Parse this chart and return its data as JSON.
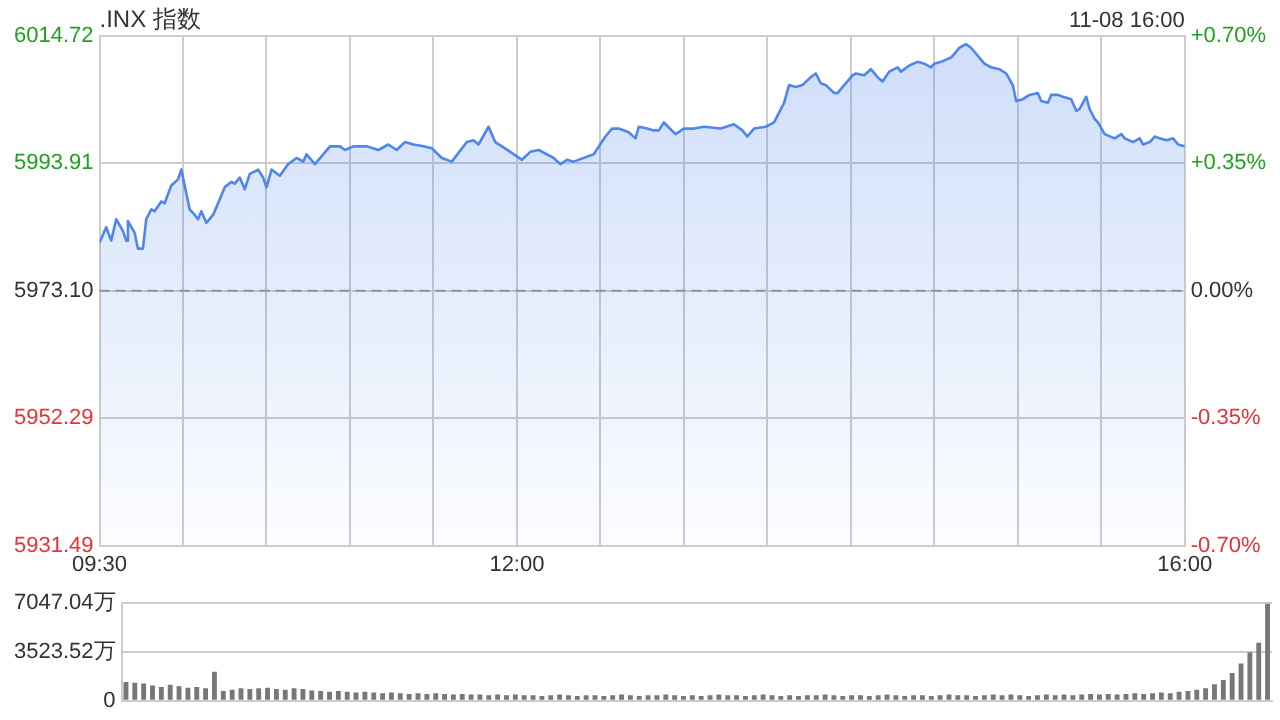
{
  "chart_data": [
    {
      "type": "area",
      "title": ".INX 指数",
      "annotations": [
        "11-08 16:00"
      ],
      "color": "#4f86ec",
      "marker": "none",
      "grid": true,
      "x": [
        9.5,
        9.54,
        9.57,
        9.6,
        9.64,
        9.66,
        9.67,
        9.71,
        9.73,
        9.76,
        9.78,
        9.81,
        9.83,
        9.87,
        9.89,
        9.93,
        9.97,
        9.99,
        10.02,
        10.04,
        10.07,
        10.09,
        10.11,
        10.14,
        10.18,
        10.21,
        10.25,
        10.29,
        10.31,
        10.34,
        10.37,
        10.4,
        10.45,
        10.48,
        10.5,
        10.53,
        10.58,
        10.63,
        10.68,
        10.72,
        10.74,
        10.79,
        10.84,
        10.88,
        10.94,
        10.97,
        11.02,
        11.1,
        11.17,
        11.23,
        11.28,
        11.33,
        11.38,
        11.44,
        11.49,
        11.55,
        11.61,
        11.7,
        11.74,
        11.77,
        11.83,
        11.87,
        11.91,
        11.96,
        12.03,
        12.08,
        12.13,
        12.22,
        12.26,
        12.3,
        12.34,
        12.46,
        12.53,
        12.57,
        12.61,
        12.67,
        12.71,
        12.73,
        12.78,
        12.82,
        12.85,
        12.88,
        12.95,
        13.0,
        13.06,
        13.12,
        13.22,
        13.3,
        13.35,
        13.38,
        13.42,
        13.49,
        13.54,
        13.6,
        13.63,
        13.67,
        13.71,
        13.76,
        13.79,
        13.82,
        13.85,
        13.9,
        13.92,
        13.96,
        14.01,
        14.03,
        14.08,
        14.12,
        14.16,
        14.19,
        14.23,
        14.28,
        14.3,
        14.35,
        14.4,
        14.44,
        14.48,
        14.5,
        14.54,
        14.6,
        14.62,
        14.65,
        14.69,
        14.72,
        14.76,
        14.8,
        14.84,
        14.89,
        14.93,
        14.97,
        14.99,
        15.03,
        15.07,
        15.12,
        15.14,
        15.18,
        15.2,
        15.24,
        15.27,
        15.32,
        15.35,
        15.37,
        15.41,
        15.43,
        15.46,
        15.48,
        15.52,
        15.58,
        15.62,
        15.64,
        15.69,
        15.73,
        15.75,
        15.79,
        15.82,
        15.85,
        15.89,
        15.93,
        15.96,
        16.0
      ],
      "values": [
        5981.0,
        5983.5,
        5981.3,
        5984.8,
        5982.9,
        5981.3,
        5984.5,
        5982.6,
        5980.0,
        5980.0,
        5984.8,
        5986.4,
        5986.1,
        5987.7,
        5987.4,
        5990.3,
        5991.3,
        5992.9,
        5989.0,
        5986.4,
        5985.5,
        5984.8,
        5986.1,
        5984.2,
        5985.5,
        5987.4,
        5990.0,
        5990.9,
        5990.6,
        5991.6,
        5989.7,
        5992.2,
        5992.9,
        5991.6,
        5990.0,
        5992.9,
        5991.9,
        5993.8,
        5994.8,
        5994.2,
        5995.4,
        5993.8,
        5995.4,
        5996.7,
        5996.7,
        5996.1,
        5996.7,
        5996.7,
        5996.1,
        5997.0,
        5996.1,
        5997.4,
        5997.0,
        5996.7,
        5996.4,
        5994.8,
        5994.2,
        5997.4,
        5997.7,
        5997.0,
        5999.9,
        5997.4,
        5996.7,
        5995.8,
        5994.5,
        5995.8,
        5996.1,
        5994.8,
        5993.8,
        5994.5,
        5994.2,
        5995.4,
        5998.3,
        5999.6,
        5999.6,
        5999.0,
        5998.0,
        5999.9,
        5999.6,
        5999.3,
        5999.3,
        6000.6,
        5998.7,
        5999.6,
        5999.6,
        5999.9,
        5999.6,
        6000.3,
        5999.3,
        5998.3,
        5999.6,
        5999.9,
        6000.6,
        6003.8,
        6006.7,
        6006.4,
        6006.7,
        6008.0,
        6008.6,
        6007.0,
        6006.7,
        6005.4,
        6005.4,
        6006.7,
        6008.3,
        6008.6,
        6008.3,
        6009.3,
        6008.0,
        6007.3,
        6008.9,
        6009.6,
        6008.9,
        6009.9,
        6010.5,
        6010.2,
        6009.6,
        6010.2,
        6010.5,
        6011.2,
        6011.8,
        6012.8,
        6013.4,
        6012.8,
        6011.5,
        6010.2,
        6009.6,
        6009.3,
        6008.6,
        6006.7,
        6004.1,
        6004.4,
        6005.1,
        6005.4,
        6004.1,
        6003.8,
        6005.1,
        6005.1,
        6004.8,
        6004.4,
        6002.5,
        6002.8,
        6004.8,
        6002.8,
        6001.2,
        6000.6,
        5998.7,
        5998.0,
        5998.7,
        5998.0,
        5997.4,
        5998.0,
        5997.0,
        5997.4,
        5998.3,
        5998.0,
        5997.7,
        5998.0,
        5997.0,
        5996.7
      ],
      "xlim": [
        9.5,
        16
      ],
      "xticks": [
        {
          "value": 9.5,
          "label": "09:30"
        },
        {
          "value": 10,
          "label": null
        },
        {
          "value": 10.5,
          "label": null
        },
        {
          "value": 11,
          "label": null
        },
        {
          "value": 11.5,
          "label": null
        },
        {
          "value": 12,
          "label": "12:00"
        },
        {
          "value": 12.5,
          "label": null
        },
        {
          "value": 13,
          "label": null
        },
        {
          "value": 13.5,
          "label": null
        },
        {
          "value": 14,
          "label": null
        },
        {
          "value": 14.5,
          "label": null
        },
        {
          "value": 15,
          "label": null
        },
        {
          "value": 15.5,
          "label": null
        },
        {
          "value": 16,
          "label": "16:00"
        }
      ],
      "ylim": [
        5931.49,
        6014.72
      ],
      "yticks": [
        5931.49,
        5952.29,
        {
          "value": 5973.1,
          "label": "5973.10"
        },
        5993.91,
        6014.72
      ],
      "y2lim": [
        -0.7,
        0.7
      ],
      "y2ticks": [
        {
          "value": -0.7,
          "label": "-0.70%"
        },
        {
          "value": -0.35,
          "label": "-0.35%"
        },
        {
          "value": 0,
          "label": "0.00%"
        },
        {
          "value": 0.35,
          "label": "+0.35%"
        },
        {
          "value": 0.7,
          "label": "+0.70%"
        }
      ],
      "ref_lines": [
        {
          "axis": "y",
          "value": 5973.1,
          "line_style": "dashed",
          "color": "#999999"
        }
      ]
    },
    {
      "type": "bar",
      "color": "#777777",
      "grid": "y",
      "tick_labels": "y",
      "categories": [
        null,
        null,
        null,
        null,
        null,
        null,
        null,
        null,
        null,
        null,
        null,
        null,
        null,
        null,
        null,
        null,
        null,
        null,
        null,
        null,
        null,
        null,
        null,
        null,
        null,
        null,
        null,
        null,
        null,
        null,
        null,
        null,
        null,
        null,
        null,
        null,
        null,
        null,
        null,
        null,
        null,
        null,
        null,
        null,
        null,
        null,
        null,
        null,
        null,
        null,
        null,
        null,
        null,
        null,
        null,
        null,
        null,
        null,
        null,
        null,
        null,
        null,
        null,
        null,
        null,
        null,
        null,
        null,
        null,
        null,
        null,
        null,
        null,
        null,
        null,
        null,
        null,
        null,
        null,
        null,
        null,
        null,
        null,
        null,
        null,
        null,
        null,
        null,
        null,
        null,
        null,
        null,
        null,
        null,
        null,
        null,
        null,
        null,
        null,
        null,
        null,
        null,
        null,
        null,
        null,
        null,
        null,
        null,
        null,
        null,
        null,
        null,
        null,
        null,
        null,
        null,
        null,
        null,
        null,
        null,
        null,
        null,
        null,
        null,
        null,
        null,
        null,
        null,
        null,
        null
      ],
      "values": [
        1350,
        1300,
        1250,
        1100,
        1000,
        1150,
        1050,
        950,
        1000,
        900,
        2100,
        700,
        800,
        900,
        850,
        900,
        950,
        850,
        800,
        900,
        850,
        750,
        700,
        650,
        700,
        650,
        600,
        650,
        600,
        550,
        600,
        550,
        500,
        550,
        500,
        550,
        500,
        450,
        500,
        450,
        450,
        400,
        450,
        400,
        450,
        400,
        400,
        350,
        400,
        450,
        400,
        350,
        400,
        400,
        350,
        400,
        450,
        400,
        350,
        400,
        400,
        450,
        400,
        350,
        400,
        350,
        400,
        450,
        400,
        400,
        350,
        400,
        450,
        400,
        350,
        400,
        350,
        400,
        400,
        450,
        400,
        350,
        400,
        400,
        350,
        400,
        450,
        400,
        350,
        400,
        400,
        350,
        400,
        450,
        400,
        400,
        350,
        400,
        450,
        400,
        450,
        400,
        350,
        400,
        450,
        400,
        450,
        400,
        450,
        500,
        450,
        500,
        450,
        500,
        550,
        500,
        550,
        600,
        550,
        650,
        700,
        800,
        900,
        1200,
        1500,
        2000,
        2700,
        3500,
        4200,
        7000
      ],
      "ylim": [
        0,
        7047.04
      ],
      "yticks": [
        0,
        {
          "value": 3523.52,
          "label": "3523.52万"
        },
        {
          "value": 7047.04,
          "label": "7047.04万"
        }
      ]
    }
  ]
}
